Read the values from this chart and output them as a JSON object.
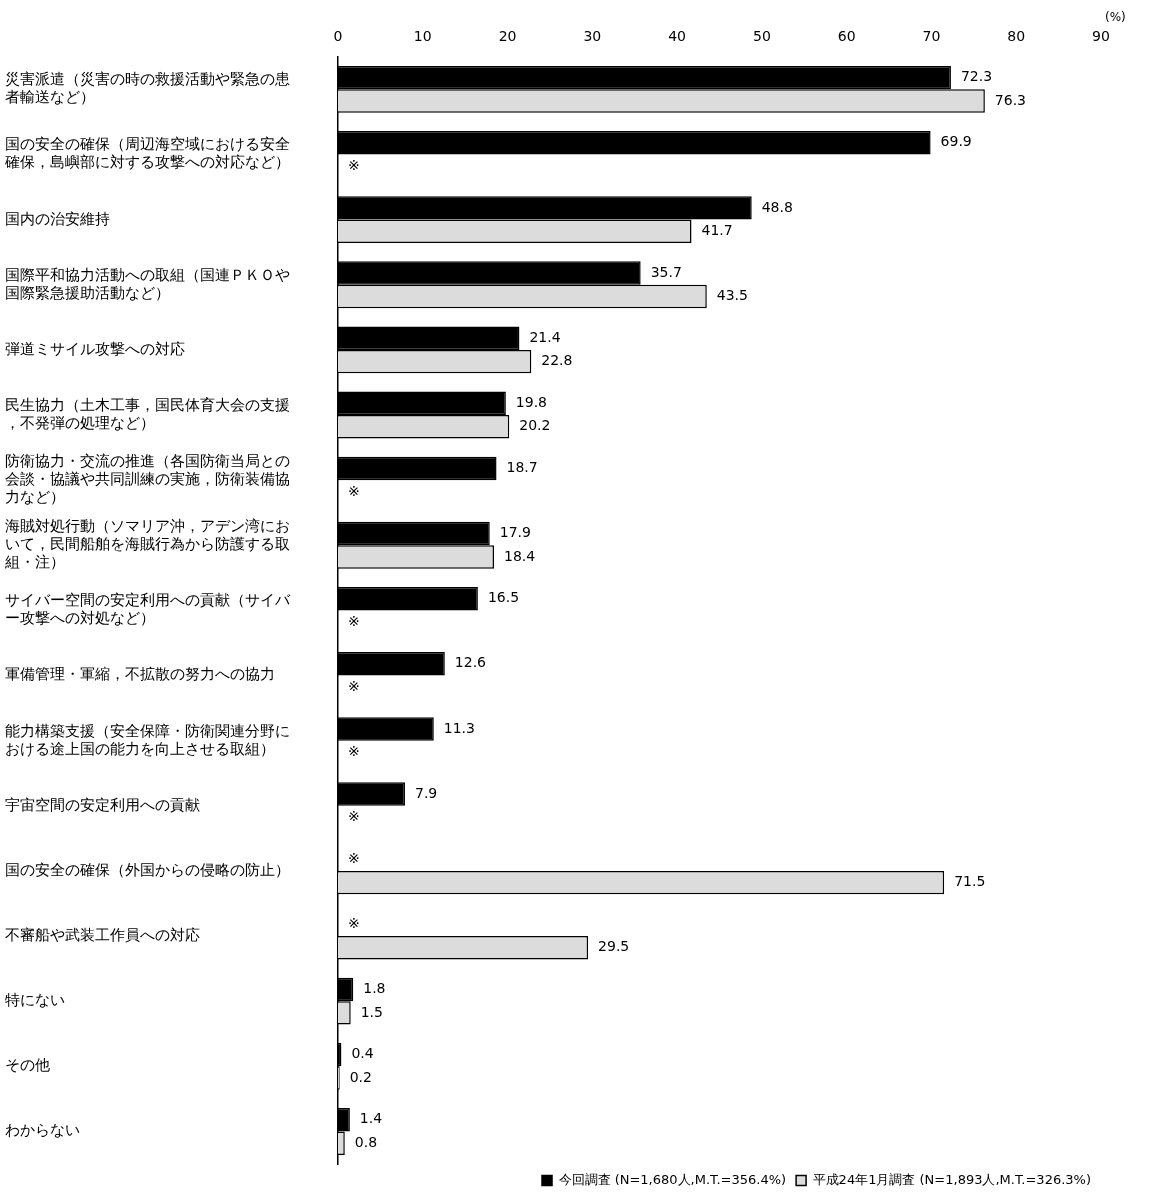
{
  "chart_data": {
    "type": "bar",
    "orientation": "horizontal",
    "xlabel": "(%)",
    "categories": [
      "災害派遣（災害の時の救援活動や緊急の患者輸送など）",
      "国の安全の確保（周辺海空域における安全確保，島嶼部に対する攻撃への対応など）",
      "国内の治安維持",
      "国際平和協力活動への取組（国連ＰＫＯや国際緊急援助活動など）",
      "弾道ミサイル攻撃への対応",
      "民生協力（土木工事，国民体育大会の支援，不発弾の処理など）",
      "防衛協力・交流の推進（各国防衛当局との会談・協議や共同訓練の実施，防衛装備協力など）",
      "海賊対処行動（ソマリア沖，アデン湾において，民間船舶を海賊行為から防護する取組・注）",
      "サイバー空間の安定利用への貢献（サイバー攻撃への対処など）",
      "軍備管理・軍縮，不拡散の努力への協力",
      "能力構築支援（安全保障・防衛関連分野における途上国の能力を向上させる取組）",
      "宇宙空間の安定利用への貢献",
      "国の安全の確保（外国からの侵略の防止）",
      "不審船や武装工作員への対応",
      "特にない",
      "その他",
      "わからない"
    ],
    "series": [
      {
        "name": "今回調査 (N=1,680人,M.T.=356.4%)",
        "color": "#000000",
        "values": [
          72.3,
          69.9,
          48.8,
          35.7,
          21.4,
          19.8,
          18.7,
          17.9,
          16.5,
          12.6,
          11.3,
          7.9,
          null,
          null,
          1.8,
          0.4,
          1.4
        ],
        "value_labels": [
          "72.3",
          "69.9",
          "48.8",
          "35.7",
          "21.4",
          "19.8",
          "18.7",
          "17.9",
          "16.5",
          "12.6",
          "11.3",
          "7.9",
          "※",
          "※",
          "1.8",
          "0.4",
          "1.4"
        ]
      },
      {
        "name": "平成24年1月調査 (N=1,893人,M.T.=326.3%)",
        "color": "#dcdcdc",
        "values": [
          76.3,
          null,
          41.7,
          43.5,
          22.8,
          20.2,
          null,
          18.4,
          null,
          null,
          null,
          null,
          71.5,
          29.5,
          1.5,
          0.2,
          0.8
        ],
        "value_labels": [
          "76.3",
          "※",
          "41.7",
          "43.5",
          "22.8",
          "20.2",
          "※",
          "18.4",
          "※",
          "※",
          "※",
          "※",
          "71.5",
          "29.5",
          "1.5",
          "0.2",
          "0.8"
        ]
      }
    ],
    "xlim": [
      0,
      90
    ],
    "xticks": [
      0,
      10,
      20,
      30,
      40,
      50,
      60,
      70,
      80,
      90
    ],
    "grid": false,
    "legend": "bottom right"
  }
}
